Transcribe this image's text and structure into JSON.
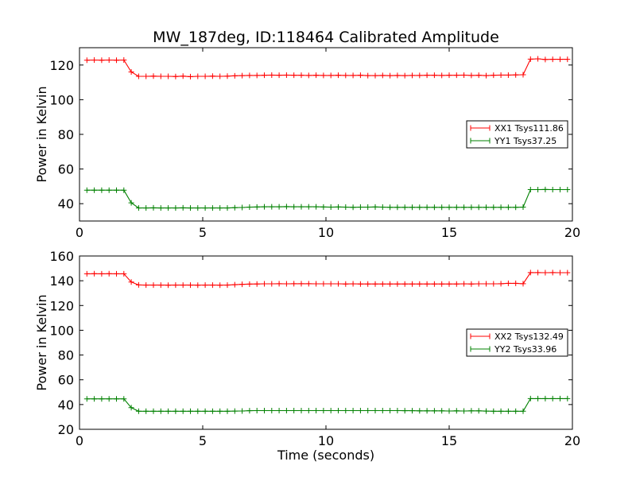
{
  "figure": {
    "title": "MW_187deg, ID:118464 Calibrated Amplitude"
  },
  "chart_data": [
    {
      "type": "line",
      "title": "MW_187deg, ID:118464 Calibrated Amplitude",
      "xlabel": "",
      "ylabel": "Power in Kelvin",
      "xlim": [
        0,
        20
      ],
      "ylim": [
        30,
        130
      ],
      "xticks": [
        0,
        5,
        10,
        15,
        20
      ],
      "yticks": [
        40,
        60,
        80,
        100,
        120
      ],
      "legend_position": "right",
      "grid": false,
      "x": [
        0.3,
        0.6,
        0.9,
        1.2,
        1.5,
        1.8,
        2.1,
        2.4,
        2.7,
        3.0,
        3.3,
        3.6,
        3.9,
        4.2,
        4.5,
        4.8,
        5.1,
        5.4,
        5.7,
        6.0,
        6.3,
        6.6,
        6.9,
        7.2,
        7.5,
        7.8,
        8.1,
        8.4,
        8.7,
        9.0,
        9.3,
        9.6,
        9.9,
        10.2,
        10.5,
        10.8,
        11.1,
        11.4,
        11.7,
        12.0,
        12.3,
        12.6,
        12.9,
        13.2,
        13.5,
        13.8,
        14.1,
        14.4,
        14.7,
        15.0,
        15.3,
        15.6,
        15.9,
        16.2,
        16.5,
        16.8,
        17.1,
        17.4,
        17.7,
        18.0,
        18.3,
        18.6,
        18.9,
        19.2,
        19.5,
        19.8
      ],
      "series": [
        {
          "name": "XX1 Tsys111.86",
          "color": "#ff0000",
          "values": [
            122.8,
            122.9,
            122.8,
            122.9,
            122.8,
            122.9,
            116.0,
            113.5,
            113.5,
            113.6,
            113.5,
            113.5,
            113.4,
            113.6,
            113.3,
            113.5,
            113.5,
            113.6,
            113.5,
            113.6,
            113.8,
            113.9,
            114.0,
            114.0,
            114.1,
            114.2,
            114.1,
            114.2,
            114.1,
            114.1,
            114.0,
            114.1,
            114.0,
            114.0,
            114.1,
            114.0,
            114.0,
            114.1,
            113.9,
            113.9,
            114.0,
            113.9,
            114.0,
            113.9,
            114.0,
            114.0,
            114.1,
            114.1,
            114.0,
            114.1,
            114.1,
            114.2,
            114.0,
            114.1,
            113.9,
            114.1,
            114.2,
            114.2,
            114.3,
            114.4,
            123.4,
            123.6,
            123.2,
            123.3,
            123.3,
            123.3
          ]
        },
        {
          "name": "YY1 Tsys37.25",
          "color": "#008000",
          "values": [
            47.8,
            47.8,
            47.8,
            47.8,
            47.8,
            47.8,
            40.5,
            37.5,
            37.5,
            37.6,
            37.5,
            37.5,
            37.5,
            37.6,
            37.5,
            37.5,
            37.5,
            37.5,
            37.5,
            37.5,
            37.7,
            37.8,
            38.0,
            38.1,
            38.2,
            38.2,
            38.2,
            38.3,
            38.2,
            38.2,
            38.2,
            38.2,
            38.1,
            38.0,
            38.1,
            38.0,
            37.9,
            38.0,
            38.0,
            38.1,
            38.0,
            37.9,
            37.9,
            37.9,
            37.9,
            37.9,
            37.9,
            37.9,
            37.9,
            37.9,
            37.9,
            37.9,
            37.9,
            37.9,
            37.9,
            37.9,
            37.9,
            37.9,
            37.9,
            38.0,
            48.1,
            48.1,
            48.2,
            48.1,
            48.1,
            48.1
          ]
        }
      ]
    },
    {
      "type": "line",
      "title": "",
      "xlabel": "Time (seconds)",
      "ylabel": "Power in Kelvin",
      "xlim": [
        0,
        20
      ],
      "ylim": [
        20,
        160
      ],
      "xticks": [
        0,
        5,
        10,
        15,
        20
      ],
      "yticks": [
        20,
        40,
        60,
        80,
        100,
        120,
        140,
        160
      ],
      "legend_position": "right",
      "grid": false,
      "x": [
        0.3,
        0.6,
        0.9,
        1.2,
        1.5,
        1.8,
        2.1,
        2.4,
        2.7,
        3.0,
        3.3,
        3.6,
        3.9,
        4.2,
        4.5,
        4.8,
        5.1,
        5.4,
        5.7,
        6.0,
        6.3,
        6.6,
        6.9,
        7.2,
        7.5,
        7.8,
        8.1,
        8.4,
        8.7,
        9.0,
        9.3,
        9.6,
        9.9,
        10.2,
        10.5,
        10.8,
        11.1,
        11.4,
        11.7,
        12.0,
        12.3,
        12.6,
        12.9,
        13.2,
        13.5,
        13.8,
        14.1,
        14.4,
        14.7,
        15.0,
        15.3,
        15.6,
        15.9,
        16.2,
        16.5,
        16.8,
        17.1,
        17.4,
        17.7,
        18.0,
        18.3,
        18.6,
        18.9,
        19.2,
        19.5,
        19.8
      ],
      "series": [
        {
          "name": "XX2 Tsys132.49",
          "color": "#ff0000",
          "values": [
            145.6,
            145.7,
            145.6,
            145.7,
            145.6,
            145.6,
            139.0,
            136.6,
            136.5,
            136.5,
            136.5,
            136.4,
            136.5,
            136.5,
            136.5,
            136.4,
            136.5,
            136.5,
            136.4,
            136.5,
            136.8,
            137.1,
            137.3,
            137.4,
            137.5,
            137.5,
            137.6,
            137.5,
            137.6,
            137.6,
            137.6,
            137.5,
            137.5,
            137.5,
            137.5,
            137.4,
            137.5,
            137.4,
            137.4,
            137.4,
            137.4,
            137.4,
            137.4,
            137.4,
            137.4,
            137.4,
            137.4,
            137.4,
            137.4,
            137.4,
            137.4,
            137.5,
            137.4,
            137.5,
            137.5,
            137.5,
            137.6,
            137.9,
            137.9,
            137.6,
            146.6,
            146.6,
            146.5,
            146.6,
            146.5,
            146.5
          ]
        },
        {
          "name": "YY2 Tsys33.96",
          "color": "#008000",
          "values": [
            44.6,
            44.6,
            44.6,
            44.6,
            44.6,
            44.6,
            37.5,
            34.6,
            34.6,
            34.6,
            34.6,
            34.6,
            34.6,
            34.6,
            34.6,
            34.6,
            34.6,
            34.6,
            34.6,
            34.6,
            34.7,
            34.8,
            35.0,
            35.1,
            35.1,
            35.1,
            35.1,
            35.1,
            35.1,
            35.1,
            35.1,
            35.1,
            35.1,
            35.1,
            35.1,
            35.1,
            35.1,
            35.1,
            35.1,
            35.1,
            35.1,
            35.1,
            35.1,
            35.0,
            35.0,
            34.9,
            34.9,
            34.9,
            34.9,
            34.8,
            34.9,
            34.8,
            34.9,
            34.9,
            34.7,
            34.6,
            34.6,
            34.6,
            34.6,
            34.6,
            44.8,
            44.8,
            44.8,
            44.8,
            44.8,
            44.8
          ]
        }
      ]
    }
  ]
}
